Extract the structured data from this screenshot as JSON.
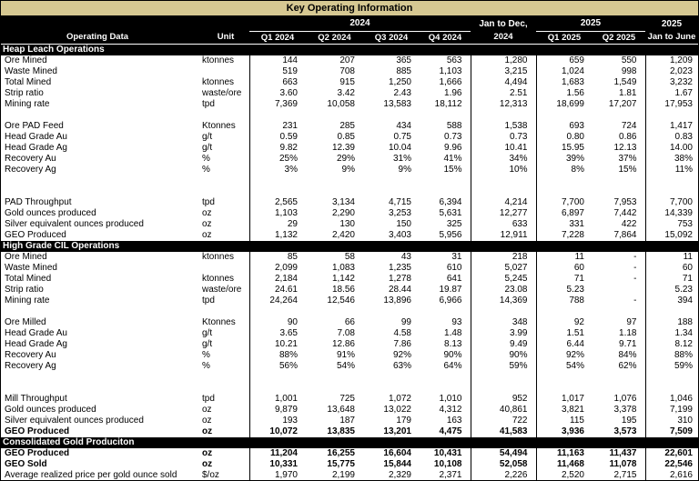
{
  "title": "Key Operating Information",
  "colors": {
    "title_bg": "#D6C892",
    "header_bg": "#000000",
    "header_text": "#FFFFFF"
  },
  "header": {
    "operating_data": "Operating Data",
    "unit": "Unit",
    "group_2024": "2024",
    "group_jan_to_dec": "Jan to Dec,",
    "group_2025": "2025",
    "group_last_top": "2025",
    "columns": [
      "Q1 2024",
      "Q2 2024",
      "Q3 2024",
      "Q4 2024",
      "2024",
      "Q1 2025",
      "Q2 2025",
      "Jan to June"
    ]
  },
  "column_keys": [
    "q1-2024",
    "q2-2024",
    "q3-2024",
    "q4-2024",
    "fy-2024",
    "q1-2025",
    "q2-2025",
    "jan-june-2025"
  ],
  "sections": [
    {
      "id": "heap-leach-operations",
      "name": "Heap Leach Operations",
      "rows": [
        {
          "label": "Ore Mined",
          "unit": "ktonnes",
          "values": [
            "144",
            "207",
            "365",
            "563",
            "1,280",
            "659",
            "550",
            "1,209"
          ]
        },
        {
          "label": "Waste Mined",
          "unit": "",
          "values": [
            "519",
            "708",
            "885",
            "1,103",
            "3,215",
            "1,024",
            "998",
            "2,023"
          ]
        },
        {
          "label": "Total Mined",
          "unit": "ktonnes",
          "values": [
            "663",
            "915",
            "1,250",
            "1,666",
            "4,494",
            "1,683",
            "1,549",
            "3,232"
          ]
        },
        {
          "label": "Strip ratio",
          "unit": "waste/ore",
          "values": [
            "3.60",
            "3.42",
            "2.43",
            "1.96",
            "2.51",
            "1.56",
            "1.81",
            "1.67"
          ]
        },
        {
          "label": "Mining rate",
          "unit": "tpd",
          "values": [
            "7,369",
            "10,058",
            "13,583",
            "18,112",
            "12,313",
            "18,699",
            "17,207",
            "17,953"
          ]
        },
        {
          "spacer": 1
        },
        {
          "label": "Ore PAD Feed",
          "unit": "Ktonnes",
          "values": [
            "231",
            "285",
            "434",
            "588",
            "1,538",
            "693",
            "724",
            "1,417"
          ]
        },
        {
          "label": "Head Grade Au",
          "unit": "g/t",
          "values": [
            "0.59",
            "0.85",
            "0.75",
            "0.73",
            "0.73",
            "0.80",
            "0.86",
            "0.83"
          ]
        },
        {
          "label": "Head Grade Ag",
          "unit": "g/t",
          "values": [
            "9.82",
            "12.39",
            "10.04",
            "9.96",
            "10.41",
            "15.95",
            "12.13",
            "14.00"
          ]
        },
        {
          "label": "Recovery Au",
          "unit": "%",
          "values": [
            "25%",
            "29%",
            "31%",
            "41%",
            "34%",
            "39%",
            "37%",
            "38%"
          ]
        },
        {
          "label": "Recovery Ag",
          "unit": "%",
          "values": [
            "3%",
            "9%",
            "9%",
            "15%",
            "10%",
            "8%",
            "15%",
            "11%"
          ]
        },
        {
          "spacer": 2
        },
        {
          "label": "PAD Throughput",
          "unit": "tpd",
          "values": [
            "2,565",
            "3,134",
            "4,715",
            "6,394",
            "4,214",
            "7,700",
            "7,953",
            "7,700"
          ]
        },
        {
          "label": "Gold ounces produced",
          "unit": "oz",
          "values": [
            "1,103",
            "2,290",
            "3,253",
            "5,631",
            "12,277",
            "6,897",
            "7,442",
            "14,339"
          ]
        },
        {
          "label": "Silver equivalent ounces produced",
          "unit": "oz",
          "values": [
            "29",
            "130",
            "150",
            "325",
            "633",
            "331",
            "422",
            "753"
          ]
        },
        {
          "label": "GEO Produced",
          "unit": "oz",
          "values": [
            "1,132",
            "2,420",
            "3,403",
            "5,956",
            "12,911",
            "7,228",
            "7,864",
            "15,092"
          ]
        }
      ]
    },
    {
      "id": "high-grade-cil-operations",
      "name": "High Grade CIL Operations",
      "rows": [
        {
          "label": "Ore Mined",
          "unit": "ktonnes",
          "values": [
            "85",
            "58",
            "43",
            "31",
            "218",
            "11",
            "-",
            "11"
          ]
        },
        {
          "label": "Waste Mined",
          "unit": "",
          "values": [
            "2,099",
            "1,083",
            "1,235",
            "610",
            "5,027",
            "60",
            "-",
            "60"
          ]
        },
        {
          "label": "Total Mined",
          "unit": "ktonnes",
          "values": [
            "2,184",
            "1,142",
            "1,278",
            "641",
            "5,245",
            "71",
            "-",
            "71"
          ]
        },
        {
          "label": "Strip ratio",
          "unit": "waste/ore",
          "values": [
            "24.61",
            "18.56",
            "28.44",
            "19.87",
            "23.08",
            "5.23",
            "",
            "5.23"
          ]
        },
        {
          "label": "Mining rate",
          "unit": "tpd",
          "values": [
            "24,264",
            "12,546",
            "13,896",
            "6,966",
            "14,369",
            "788",
            "-",
            "394"
          ]
        },
        {
          "spacer": 1
        },
        {
          "label": "Ore Milled",
          "unit": "Ktonnes",
          "values": [
            "90",
            "66",
            "99",
            "93",
            "348",
            "92",
            "97",
            "188"
          ]
        },
        {
          "label": "Head Grade Au",
          "unit": "g/t",
          "values": [
            "3.65",
            "7.08",
            "4.58",
            "1.48",
            "3.99",
            "1.51",
            "1.18",
            "1.34"
          ]
        },
        {
          "label": "Head Grade Ag",
          "unit": "g/t",
          "values": [
            "10.21",
            "12.86",
            "7.86",
            "8.13",
            "9.49",
            "6.44",
            "9.71",
            "8.12"
          ]
        },
        {
          "label": "Recovery Au",
          "unit": "%",
          "values": [
            "88%",
            "91%",
            "92%",
            "90%",
            "90%",
            "92%",
            "84%",
            "88%"
          ]
        },
        {
          "label": "Recovery Ag",
          "unit": "%",
          "values": [
            "56%",
            "54%",
            "63%",
            "64%",
            "59%",
            "54%",
            "62%",
            "59%"
          ]
        },
        {
          "spacer": 2
        },
        {
          "label": "Mill Throughput",
          "unit": "tpd",
          "values": [
            "1,001",
            "725",
            "1,072",
            "1,010",
            "952",
            "1,017",
            "1,076",
            "1,046"
          ]
        },
        {
          "label": "Gold ounces produced",
          "unit": "oz",
          "values": [
            "9,879",
            "13,648",
            "13,022",
            "4,312",
            "40,861",
            "3,821",
            "3,378",
            "7,199"
          ]
        },
        {
          "label": "Silver equivalent ounces produced",
          "unit": "oz",
          "values": [
            "193",
            "187",
            "179",
            "163",
            "722",
            "115",
            "195",
            "310"
          ]
        },
        {
          "label": "GEO Produced",
          "unit": "oz",
          "bold": true,
          "values": [
            "10,072",
            "13,835",
            "13,201",
            "4,475",
            "41,583",
            "3,936",
            "3,573",
            "7,509"
          ]
        }
      ]
    },
    {
      "id": "consolidated-gold-production",
      "name": "Consolidated Gold Produciton",
      "rows": [
        {
          "label": "GEO Produced",
          "unit": "oz",
          "bold": true,
          "values": [
            "11,204",
            "16,255",
            "16,604",
            "10,431",
            "54,494",
            "11,163",
            "11,437",
            "22,601"
          ]
        },
        {
          "label": "GEO Sold",
          "unit": "oz",
          "bold": true,
          "values": [
            "10,331",
            "15,775",
            "15,844",
            "10,108",
            "52,058",
            "11,468",
            "11,078",
            "22,546"
          ]
        },
        {
          "label": "Average realized price per gold ounce sold",
          "unit": "$/oz",
          "values": [
            "1,970",
            "2,199",
            "2,329",
            "2,371",
            "2,226",
            "2,520",
            "2,715",
            "2,616"
          ]
        }
      ]
    }
  ]
}
